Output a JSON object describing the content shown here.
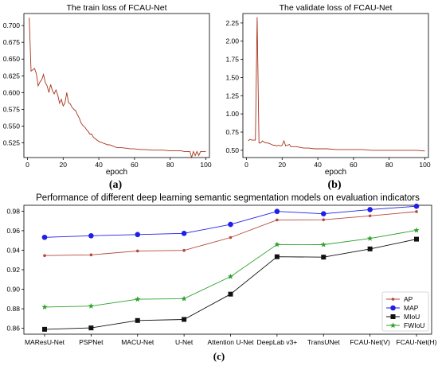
{
  "panel_labels": [
    "(a)",
    "(b)",
    "(c)"
  ],
  "chart_data": [
    {
      "type": "line",
      "title": "The train loss of FCAU-Net",
      "xlabel": "epoch",
      "ylabel": "",
      "xlim": [
        -2,
        102
      ],
      "ylim": [
        0.503,
        0.718
      ],
      "xticks": [
        0,
        20,
        40,
        60,
        80,
        100
      ],
      "yticks": [
        0.525,
        0.55,
        0.575,
        0.6,
        0.625,
        0.65,
        0.675,
        0.7
      ],
      "ytick_labels": [
        "0.525",
        "0.550",
        "0.575",
        "0.600",
        "0.625",
        "0.650",
        "0.675",
        "0.700"
      ],
      "grid": false,
      "color": "#a8321a",
      "series": [
        {
          "x": [
            1,
            2,
            3,
            4,
            5,
            6,
            7,
            8,
            9,
            10,
            11,
            12,
            13,
            14,
            15,
            16,
            17,
            18,
            19,
            20,
            21,
            22,
            23,
            24,
            25,
            26,
            27,
            28,
            29,
            30,
            31,
            32,
            33,
            34,
            35,
            36,
            37,
            38,
            39,
            40,
            41,
            42,
            43,
            44,
            45,
            46,
            47,
            48,
            49,
            50,
            52,
            55,
            58,
            60,
            63,
            66,
            70,
            73,
            76,
            80,
            83,
            86,
            88,
            90,
            91,
            92,
            93,
            94,
            95,
            96,
            97,
            98,
            99,
            100
          ],
          "values": [
            0.712,
            0.632,
            0.634,
            0.636,
            0.628,
            0.61,
            0.616,
            0.619,
            0.627,
            0.615,
            0.61,
            0.6,
            0.612,
            0.603,
            0.598,
            0.604,
            0.596,
            0.584,
            0.59,
            0.58,
            0.584,
            0.6,
            0.585,
            0.583,
            0.578,
            0.575,
            0.573,
            0.567,
            0.562,
            0.555,
            0.551,
            0.549,
            0.545,
            0.542,
            0.538,
            0.538,
            0.533,
            0.531,
            0.529,
            0.527,
            0.526,
            0.525,
            0.524,
            0.523,
            0.522,
            0.522,
            0.521,
            0.52,
            0.519,
            0.518,
            0.518,
            0.517,
            0.516,
            0.516,
            0.515,
            0.515,
            0.514,
            0.514,
            0.514,
            0.513,
            0.513,
            0.513,
            0.512,
            0.512,
            0.512,
            0.503,
            0.512,
            0.506,
            0.512,
            0.506,
            0.512,
            0.512,
            0.512,
            0.512
          ]
        }
      ]
    },
    {
      "type": "line",
      "title": "The validate loss of FCAU-Net",
      "xlabel": "epoch",
      "ylabel": "",
      "xlim": [
        -2,
        102
      ],
      "ylim": [
        0.4,
        2.38
      ],
      "xticks": [
        0,
        20,
        40,
        60,
        80,
        100
      ],
      "yticks": [
        0.5,
        0.75,
        1.0,
        1.25,
        1.5,
        1.75,
        2.0,
        2.25
      ],
      "ytick_labels": [
        "0.50",
        "0.75",
        "1.00",
        "1.25",
        "1.50",
        "1.75",
        "2.00",
        "2.25"
      ],
      "grid": false,
      "color": "#a8321a",
      "series": [
        {
          "x": [
            1,
            2,
            3,
            4,
            5,
            6,
            7,
            8,
            9,
            10,
            11,
            12,
            13,
            14,
            15,
            16,
            17,
            18,
            19,
            20,
            21,
            22,
            23,
            24,
            25,
            26,
            28,
            30,
            32,
            35,
            38,
            40,
            45,
            50,
            55,
            60,
            65,
            70,
            75,
            80,
            85,
            90,
            95,
            100
          ],
          "values": [
            0.63,
            0.65,
            0.64,
            0.64,
            0.64,
            2.33,
            0.6,
            0.6,
            0.63,
            0.61,
            0.6,
            0.6,
            0.59,
            0.58,
            0.57,
            0.57,
            0.56,
            0.57,
            0.56,
            0.57,
            0.63,
            0.56,
            0.57,
            0.58,
            0.55,
            0.55,
            0.55,
            0.54,
            0.53,
            0.53,
            0.52,
            0.52,
            0.52,
            0.51,
            0.51,
            0.51,
            0.51,
            0.5,
            0.5,
            0.5,
            0.5,
            0.5,
            0.5,
            0.49
          ]
        }
      ]
    },
    {
      "type": "line",
      "title": "Performance of different deep learning semantic segmentation models on evaluation indicators",
      "xlabel": "",
      "ylabel": "",
      "categories": [
        "MAResU-Net",
        "PSPNet",
        "MACU-Net",
        "U-Net",
        "Attention U-Net",
        "DeepLab v3+",
        "TransUNet",
        "FCAU-Net(V)",
        "FCAU-Net(H)"
      ],
      "ylim": [
        0.854,
        0.986
      ],
      "yticks": [
        0.86,
        0.88,
        0.9,
        0.92,
        0.94,
        0.96,
        0.98
      ],
      "ytick_labels": [
        "0.86",
        "0.88",
        "0.90",
        "0.92",
        "0.94",
        "0.96",
        "0.98"
      ],
      "grid": false,
      "legend_position": "lower-right",
      "series": [
        {
          "name": "AP",
          "color": "#b5483c",
          "marker": "dot",
          "values": [
            0.9345,
            0.9352,
            0.9392,
            0.9398,
            0.953,
            0.971,
            0.9712,
            0.9752,
            0.9795
          ]
        },
        {
          "name": "MAP",
          "color": "#1f1fe8",
          "marker": "circle",
          "values": [
            0.9532,
            0.9548,
            0.956,
            0.9572,
            0.9664,
            0.9797,
            0.9773,
            0.9816,
            0.985
          ]
        },
        {
          "name": "MIoU",
          "color": "#111111",
          "marker": "square",
          "values": [
            0.859,
            0.8604,
            0.868,
            0.8691,
            0.895,
            0.9333,
            0.9329,
            0.9413,
            0.9513
          ]
        },
        {
          "name": "FWIoU",
          "color": "#2ca02c",
          "marker": "star",
          "values": [
            0.8818,
            0.8828,
            0.8898,
            0.8903,
            0.913,
            0.9458,
            0.9457,
            0.952,
            0.9604
          ]
        }
      ]
    }
  ]
}
